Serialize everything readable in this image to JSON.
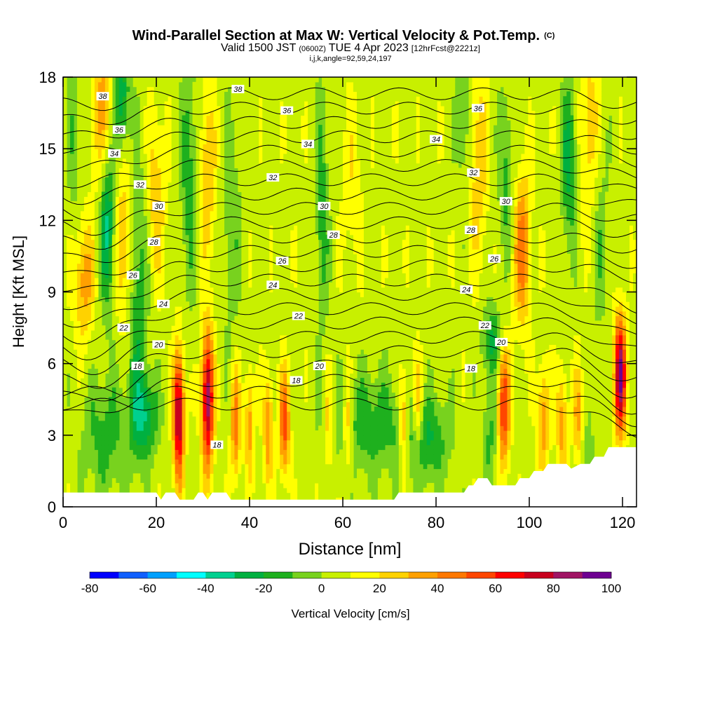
{
  "chart_data": {
    "type": "heatmap",
    "title": "Wind-Parallel Section at Max W: Vertical Velocity & Pot.Temp.",
    "title_mark": "(C)",
    "subtitle": {
      "valid": "Valid 1500 JST",
      "zulu": "(0600Z)",
      "date": "TUE 4 Apr 2023",
      "forecast": "[12hrFcst@2221z]"
    },
    "subtitle2": "i,j,k,angle=92,59,24,197",
    "xlabel": "Distance [nm]",
    "ylabel": "Height [Kft MSL]",
    "xlim": [
      0,
      123
    ],
    "ylim": [
      0,
      18
    ],
    "x_ticks": [
      0,
      20,
      40,
      60,
      80,
      100,
      120
    ],
    "y_ticks": [
      0,
      3,
      6,
      9,
      12,
      15,
      18
    ],
    "colorbar": {
      "label": "Vertical Velocity [cm/s]",
      "min": -80,
      "max": 100,
      "step": 10,
      "tick_labels": [
        "-80",
        "-60",
        "-40",
        "-20",
        "0",
        "20",
        "40",
        "60",
        "80",
        "100"
      ],
      "colors": [
        "#0000ff",
        "#1060ff",
        "#00a0ff",
        "#00ffff",
        "#00d090",
        "#00b040",
        "#1eb01e",
        "#78d21e",
        "#c8f000",
        "#ffff00",
        "#ffd200",
        "#ffa000",
        "#ff7800",
        "#ff4600",
        "#ff0000",
        "#c8001e",
        "#a01464",
        "#6e0091"
      ]
    },
    "background_value": 6,
    "updrafts": [
      {
        "x": 8.5,
        "y": 16.5,
        "w": 30,
        "sx": 1.6,
        "sy": 2.5
      },
      {
        "x": 13,
        "y": 11,
        "w": 28,
        "sx": 1.4,
        "sy": 2.2
      },
      {
        "x": 20,
        "y": 13,
        "w": 22,
        "sx": 1.4,
        "sy": 2.5
      },
      {
        "x": 24.8,
        "y": 3.8,
        "w": 82,
        "sx": 0.8,
        "sy": 1.9
      },
      {
        "x": 31,
        "y": 4.5,
        "w": 82,
        "sx": 0.9,
        "sy": 2.0
      },
      {
        "x": 31,
        "y": 14,
        "w": 25,
        "sx": 1.3,
        "sy": 2.5
      },
      {
        "x": 37,
        "y": 3.5,
        "w": 40,
        "sx": 0.7,
        "sy": 1.6
      },
      {
        "x": 40,
        "y": 3.5,
        "w": 30,
        "sx": 0.7,
        "sy": 1.6
      },
      {
        "x": 44,
        "y": 3.3,
        "w": 35,
        "sx": 0.7,
        "sy": 1.6
      },
      {
        "x": 47.5,
        "y": 3.5,
        "w": 48,
        "sx": 0.8,
        "sy": 1.5
      },
      {
        "x": 57,
        "y": 3.5,
        "w": 22,
        "sx": 0.7,
        "sy": 1.5
      },
      {
        "x": 61,
        "y": 3.5,
        "w": 28,
        "sx": 0.7,
        "sy": 1.5
      },
      {
        "x": 73,
        "y": 3.5,
        "w": 38,
        "sx": 0.7,
        "sy": 1.5
      },
      {
        "x": 76,
        "y": 4.0,
        "w": 28,
        "sx": 0.8,
        "sy": 1.5
      },
      {
        "x": 89,
        "y": 14.5,
        "w": 22,
        "sx": 1.5,
        "sy": 3.0
      },
      {
        "x": 94.5,
        "y": 4.2,
        "w": 55,
        "sx": 0.9,
        "sy": 1.8
      },
      {
        "x": 98.5,
        "y": 10.8,
        "w": 40,
        "sx": 1.3,
        "sy": 2.2
      },
      {
        "x": 103,
        "y": 3.7,
        "w": 32,
        "sx": 0.9,
        "sy": 1.6
      },
      {
        "x": 107,
        "y": 3.5,
        "w": 30,
        "sx": 0.8,
        "sy": 1.6
      },
      {
        "x": 110.5,
        "y": 3.5,
        "w": 30,
        "sx": 0.8,
        "sy": 1.6
      },
      {
        "x": 113,
        "y": 15.5,
        "w": 22,
        "sx": 1.5,
        "sy": 3.0
      },
      {
        "x": 119.5,
        "y": 5.5,
        "w": 85,
        "sx": 0.9,
        "sy": 1.7
      },
      {
        "x": 4.5,
        "y": 9.5,
        "w": 30,
        "sx": 1.5,
        "sy": 1.8
      },
      {
        "x": 62,
        "y": 13.5,
        "w": 12,
        "sx": 1.5,
        "sy": 2.5
      }
    ],
    "downdrafts": [
      {
        "x": 9.5,
        "y": 12.0,
        "w": -42,
        "sx": 1.2,
        "sy": 2.5
      },
      {
        "x": 12.5,
        "y": 17.2,
        "w": -35,
        "sx": 1.2,
        "sy": 1.5
      },
      {
        "x": 16,
        "y": 8.5,
        "w": -25,
        "sx": 1.5,
        "sy": 4.0
      },
      {
        "x": 17.5,
        "y": 3.8,
        "w": -32,
        "sx": 2.0,
        "sy": 1.2
      },
      {
        "x": 9,
        "y": 3.0,
        "w": -20,
        "sx": 3.5,
        "sy": 1.8
      },
      {
        "x": 27,
        "y": 14,
        "w": -22,
        "sx": 1.3,
        "sy": 3.5
      },
      {
        "x": 36,
        "y": 12,
        "w": -15,
        "sx": 1.5,
        "sy": 3.5
      },
      {
        "x": 55.5,
        "y": 12.5,
        "w": -22,
        "sx": 1.0,
        "sy": 3.5
      },
      {
        "x": 66,
        "y": 3.5,
        "w": -22,
        "sx": 6.0,
        "sy": 1.5
      },
      {
        "x": 78,
        "y": 2.8,
        "w": -25,
        "sx": 3.5,
        "sy": 1.3
      },
      {
        "x": 86,
        "y": 16.5,
        "w": -18,
        "sx": 1.2,
        "sy": 2.5
      },
      {
        "x": 92,
        "y": 7.0,
        "w": -28,
        "sx": 1.5,
        "sy": 1.0
      },
      {
        "x": 95,
        "y": 14,
        "w": -20,
        "sx": 1.2,
        "sy": 2.5
      },
      {
        "x": 108.5,
        "y": 14.5,
        "w": -30,
        "sx": 1.2,
        "sy": 2.5
      },
      {
        "x": 115,
        "y": 11.5,
        "w": -15,
        "sx": 1.4,
        "sy": 3.0
      },
      {
        "x": 91.5,
        "y": 3.0,
        "w": -18,
        "sx": 1.2,
        "sy": 1.8
      },
      {
        "x": 112,
        "y": 2.2,
        "w": -15,
        "sx": 1.5,
        "sy": 1.0
      },
      {
        "x": 2.5,
        "y": 15.5,
        "w": -15,
        "sx": 1.2,
        "sy": 2.5
      }
    ],
    "terrain": [
      [
        0,
        0.6
      ],
      [
        5,
        0.6
      ],
      [
        20,
        0.6
      ],
      [
        21,
        0.3
      ],
      [
        22,
        0.6
      ],
      [
        24,
        0.6
      ],
      [
        25,
        0.3
      ],
      [
        28,
        0.3
      ],
      [
        29,
        0.6
      ],
      [
        30,
        0.6
      ],
      [
        31,
        0.3
      ],
      [
        32,
        0.6
      ],
      [
        35,
        0.6
      ],
      [
        36,
        0.3
      ],
      [
        71,
        0.3
      ],
      [
        72,
        0.6
      ],
      [
        86,
        0.6
      ],
      [
        87,
        0.9
      ],
      [
        88,
        0.9
      ],
      [
        89,
        1.2
      ],
      [
        91,
        1.2
      ],
      [
        92,
        0.9
      ],
      [
        97,
        0.9
      ],
      [
        98,
        1.2
      ],
      [
        100,
        1.2
      ],
      [
        101,
        1.5
      ],
      [
        103,
        1.5
      ],
      [
        104,
        1.8
      ],
      [
        108,
        1.8
      ],
      [
        109,
        1.6
      ],
      [
        111,
        1.8
      ],
      [
        113,
        1.8
      ],
      [
        114,
        2.1
      ],
      [
        116,
        2.1
      ],
      [
        117,
        2.5
      ],
      [
        123,
        2.5
      ]
    ],
    "isentropes": {
      "levels": [
        16,
        17,
        18,
        19,
        20,
        21,
        22,
        23,
        24,
        25,
        26,
        27,
        28,
        29,
        30,
        31,
        32,
        33,
        34,
        35,
        36,
        37,
        38
      ],
      "labeled_levels": [
        18,
        20,
        22,
        24,
        26,
        28,
        30,
        32,
        34,
        36,
        38
      ]
    },
    "isentrope_labels": [
      {
        "text": "38",
        "x": 8.5,
        "y": 17.2
      },
      {
        "text": "36",
        "x": 12,
        "y": 15.8
      },
      {
        "text": "34",
        "x": 11,
        "y": 14.8
      },
      {
        "text": "32",
        "x": 16.5,
        "y": 13.5
      },
      {
        "text": "30",
        "x": 20.5,
        "y": 12.6
      },
      {
        "text": "28",
        "x": 19.5,
        "y": 11.1
      },
      {
        "text": "26",
        "x": 15,
        "y": 9.7
      },
      {
        "text": "24",
        "x": 21.5,
        "y": 8.5
      },
      {
        "text": "22",
        "x": 13,
        "y": 7.5
      },
      {
        "text": "20",
        "x": 20.5,
        "y": 6.8
      },
      {
        "text": "18",
        "x": 16,
        "y": 5.9
      },
      {
        "text": "38",
        "x": 37.5,
        "y": 17.5
      },
      {
        "text": "36",
        "x": 48,
        "y": 16.6
      },
      {
        "text": "34",
        "x": 52.5,
        "y": 15.2
      },
      {
        "text": "32",
        "x": 45,
        "y": 13.8
      },
      {
        "text": "30",
        "x": 56,
        "y": 12.6
      },
      {
        "text": "28",
        "x": 58,
        "y": 11.4
      },
      {
        "text": "26",
        "x": 47,
        "y": 10.3
      },
      {
        "text": "24",
        "x": 45,
        "y": 9.3
      },
      {
        "text": "22",
        "x": 50.5,
        "y": 8.0
      },
      {
        "text": "20",
        "x": 55,
        "y": 5.9
      },
      {
        "text": "18",
        "x": 50,
        "y": 5.3
      },
      {
        "text": "36",
        "x": 89,
        "y": 16.7
      },
      {
        "text": "34",
        "x": 80,
        "y": 15.4
      },
      {
        "text": "32",
        "x": 88,
        "y": 14.0
      },
      {
        "text": "30",
        "x": 95,
        "y": 12.8
      },
      {
        "text": "28",
        "x": 87.5,
        "y": 11.6
      },
      {
        "text": "26",
        "x": 92.5,
        "y": 10.4
      },
      {
        "text": "24",
        "x": 86.5,
        "y": 9.1
      },
      {
        "text": "22",
        "x": 90.5,
        "y": 7.6
      },
      {
        "text": "20",
        "x": 94,
        "y": 6.9
      },
      {
        "text": "18",
        "x": 87.5,
        "y": 5.8
      },
      {
        "text": "18",
        "x": 33,
        "y": 2.6
      }
    ]
  }
}
